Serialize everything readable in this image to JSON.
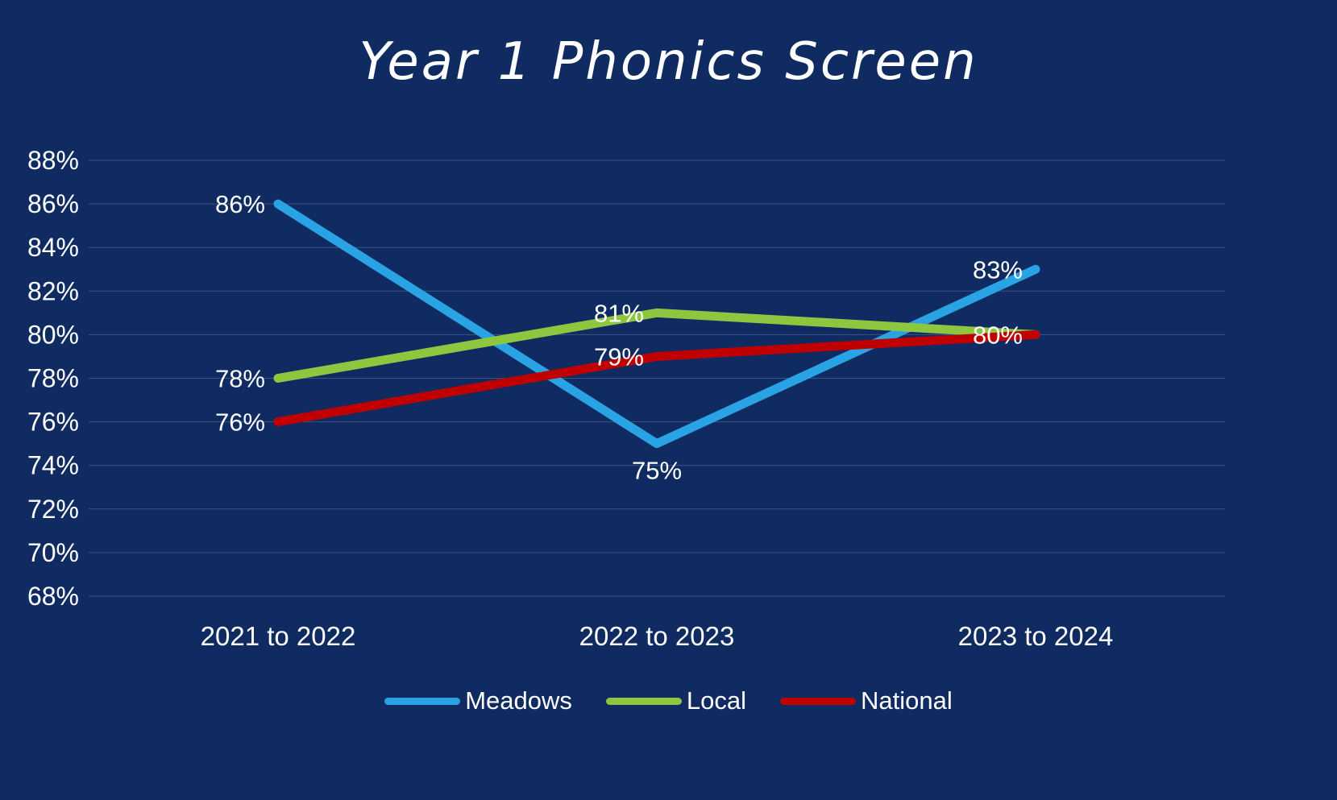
{
  "chart_data": {
    "type": "line",
    "title": "Year 1 Phonics Screen",
    "categories": [
      "2021 to 2022",
      "2022 to 2023",
      "2023 to 2024"
    ],
    "series": [
      {
        "name": "Meadows",
        "color": "#29a3e3",
        "values": [
          86,
          75,
          83
        ],
        "labels": [
          "86%",
          "75%",
          "83%"
        ],
        "label_sides": [
          "left",
          "below",
          "left"
        ]
      },
      {
        "name": "Local",
        "color": "#8dc63f",
        "values": [
          78,
          81,
          80
        ],
        "labels": [
          "78%",
          "81%",
          null
        ],
        "label_sides": [
          "left",
          "left",
          "left"
        ]
      },
      {
        "name": "National",
        "color": "#c00000",
        "values": [
          76,
          79,
          80
        ],
        "labels": [
          "76%",
          "79%",
          "80%"
        ],
        "label_sides": [
          "left",
          "left",
          "left"
        ]
      }
    ],
    "y_axis": {
      "min": 68,
      "max": 88,
      "step": 2,
      "suffix": "%"
    },
    "grid": true,
    "legend_position": "bottom",
    "background_color": "#0f2b62",
    "text_color": "#ffffff",
    "gridline_color": "rgba(220,228,240,0.22)"
  }
}
